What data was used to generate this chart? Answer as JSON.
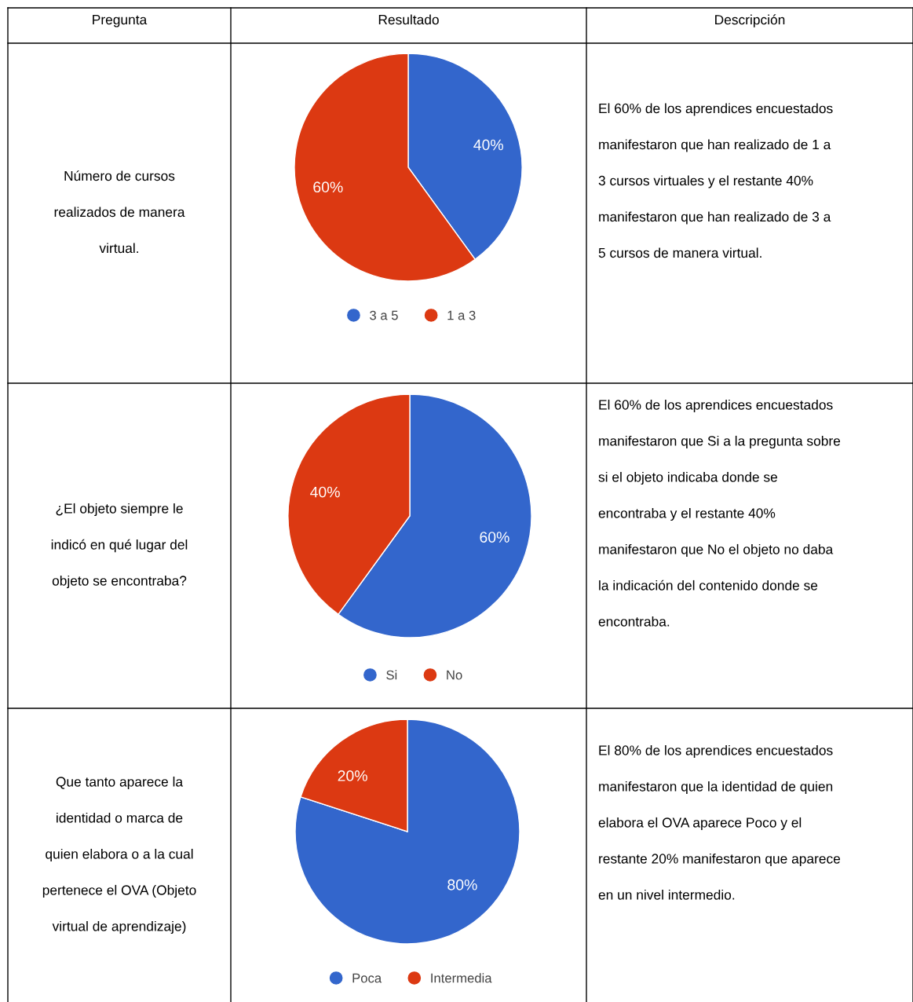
{
  "chart_data": [
    {
      "type": "other",
      "title": "Pregunta",
      "annotations": [
        "Número de cursos",
        "realizados de manera",
        "virtual."
      ]
    },
    {
      "type": "pie",
      "title": "Resultado",
      "categories": [
        "3 a 5",
        "1 a 3"
      ],
      "values": [
        40,
        60
      ],
      "colors": [
        "#3366cc",
        "#dc3912"
      ],
      "value_labels": [
        "40%",
        "60%"
      ],
      "legend": "bottom"
    },
    {
      "type": "other",
      "title": "Descripción",
      "annotations": [
        "El 60% de los aprendices encuestados",
        "manifestaron que han realizado de 1 a",
        "3 cursos virtuales y el restante 40%",
        "manifestaron que han realizado de 3 a",
        "5 cursos de manera virtual."
      ]
    },
    {
      "type": "other",
      "annotations": [
        "¿El objeto siempre le",
        "indicó en qué lugar del",
        "objeto se encontraba?"
      ]
    },
    {
      "type": "pie",
      "categories": [
        "Si",
        "No"
      ],
      "values": [
        60,
        40
      ],
      "colors": [
        "#3366cc",
        "#dc3912"
      ],
      "value_labels": [
        "60%",
        "40%"
      ],
      "legend": "bottom"
    },
    {
      "type": "other",
      "annotations": [
        "El 60% de los aprendices encuestados",
        "manifestaron que Si a la pregunta sobre",
        "si el objeto indicaba donde se",
        "encontraba y el restante 40%",
        "manifestaron que No el objeto no daba",
        "la indicación del contenido donde se",
        "encontraba."
      ]
    },
    {
      "type": "other",
      "annotations": [
        "Que tanto aparece la",
        "identidad o marca de",
        "quien elabora o a la cual",
        "pertenece el OVA (Objeto",
        "virtual de aprendizaje)"
      ]
    },
    {
      "type": "pie",
      "categories": [
        "Poca",
        "Intermedia"
      ],
      "values": [
        80,
        20
      ],
      "colors": [
        "#3366cc",
        "#dc3912"
      ],
      "value_labels": [
        "80%",
        "20%"
      ],
      "legend": "bottom"
    },
    {
      "type": "other",
      "annotations": [
        "El 80% de los aprendices encuestados",
        "manifestaron que la identidad de quien",
        "elabora el OVA aparece Poco y el",
        "restante 20% manifestaron que aparece",
        "en un nivel intermedio."
      ]
    }
  ]
}
